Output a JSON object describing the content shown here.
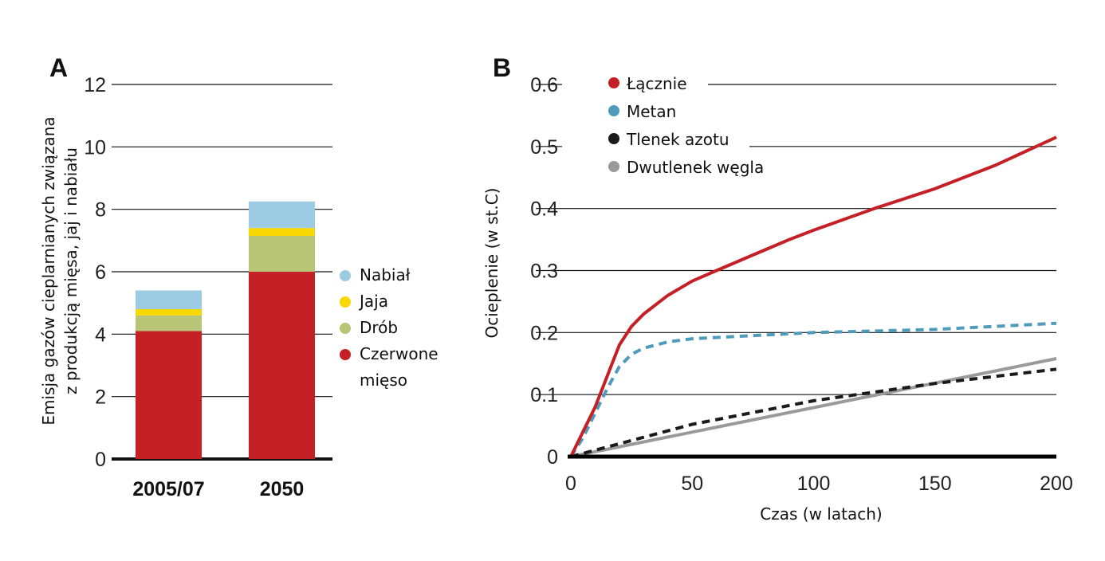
{
  "chart_data": [
    {
      "panel_label": "A",
      "type": "bar",
      "stacked": true,
      "categories": [
        "2005/07",
        "2050"
      ],
      "ylabel_lines": [
        "Emisja gazów cieplarnianych związana",
        "z produkcją mięsa, jaj i nabiału"
      ],
      "ylim": [
        0,
        12
      ],
      "yticks": [
        "0",
        "2",
        "4",
        "6",
        "8",
        "10",
        "12"
      ],
      "grid": true,
      "legend_placement": "right",
      "series": [
        {
          "name": "Czerwone mięso",
          "name_lines": [
            "Czerwone",
            "mięso"
          ],
          "color": "#c42026",
          "values": [
            4.1,
            6.0
          ]
        },
        {
          "name": "Drób",
          "color": "#b8c576",
          "values": [
            0.5,
            1.15
          ]
        },
        {
          "name": "Jaja",
          "color": "#f7d800",
          "values": [
            0.2,
            0.25
          ]
        },
        {
          "name": "Nabiał",
          "color": "#9ccbe3",
          "values": [
            0.6,
            0.85
          ]
        }
      ],
      "legend_order": [
        3,
        2,
        1,
        0
      ]
    },
    {
      "panel_label": "B",
      "type": "line",
      "xlabel": "Czas (w latach)",
      "ylabel": "Ocieplenie (w st.C)",
      "xlim": [
        0,
        200
      ],
      "ylim": [
        0,
        0.6
      ],
      "xticks": [
        "0",
        "50",
        "100",
        "150",
        "200"
      ],
      "yticks": [
        "0",
        "0.1",
        "0.2",
        "0.3",
        "0.4",
        "0.5",
        "0.6"
      ],
      "grid": true,
      "legend_placement": "top-left",
      "series": [
        {
          "name": "Łącznie",
          "color": "#c42026",
          "style": "solid",
          "x": [
            0,
            5,
            10,
            15,
            20,
            25,
            30,
            40,
            50,
            60,
            75,
            90,
            100,
            125,
            150,
            175,
            200
          ],
          "y": [
            0,
            0.04,
            0.08,
            0.13,
            0.18,
            0.21,
            0.23,
            0.26,
            0.283,
            0.3,
            0.325,
            0.35,
            0.365,
            0.4,
            0.432,
            0.47,
            0.515
          ]
        },
        {
          "name": "Metan",
          "color": "#4f9bbb",
          "style": "dashed",
          "x": [
            0,
            5,
            10,
            15,
            20,
            25,
            30,
            40,
            50,
            75,
            100,
            150,
            200
          ],
          "y": [
            0,
            0.03,
            0.07,
            0.11,
            0.145,
            0.165,
            0.175,
            0.185,
            0.19,
            0.195,
            0.2,
            0.205,
            0.215
          ]
        },
        {
          "name": "Tlenek azotu",
          "color": "#1a1a1a",
          "style": "dashed",
          "x": [
            0,
            50,
            100,
            150,
            200
          ],
          "y": [
            0,
            0.052,
            0.09,
            0.118,
            0.141
          ]
        },
        {
          "name": "Dwutlenek węgla",
          "color": "#9a9a9a",
          "style": "solid",
          "x": [
            0,
            200
          ],
          "y": [
            0,
            0.158
          ]
        }
      ]
    }
  ]
}
